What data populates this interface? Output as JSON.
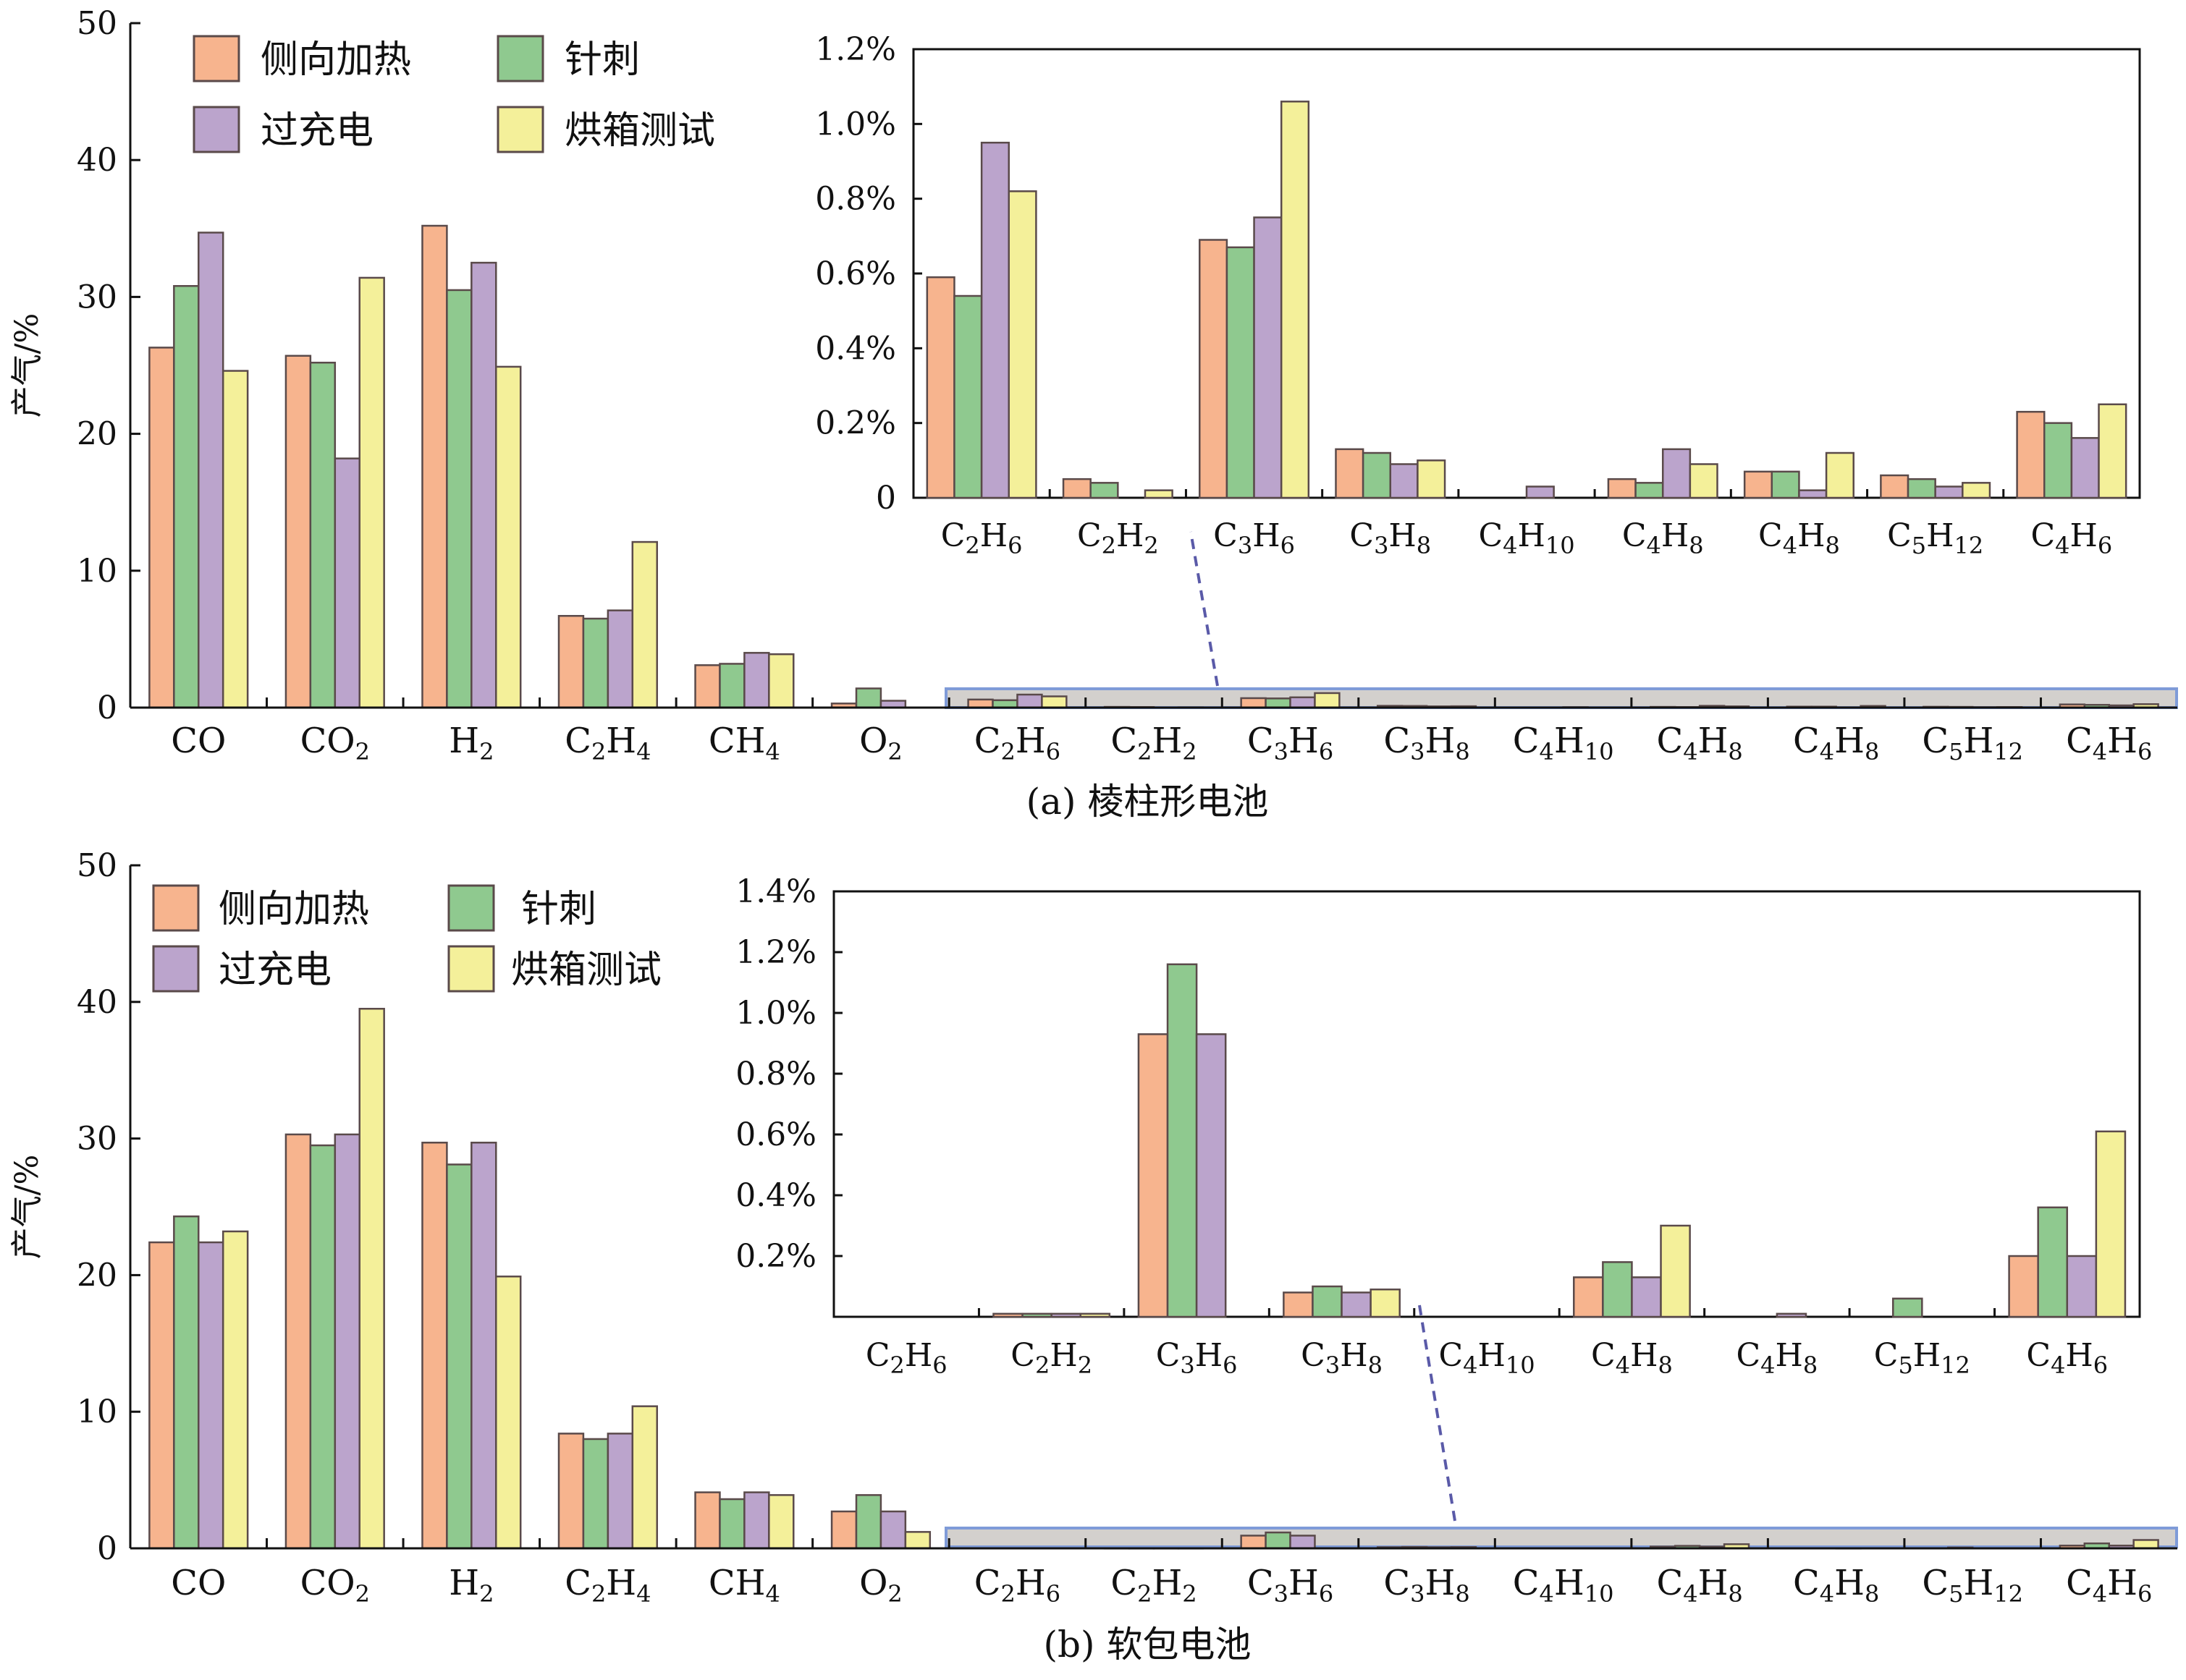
{
  "colors": {
    "侧向加热": "#f7b48e",
    "针刺": "#8fc98f",
    "过充电": "#bba4cc",
    "烘箱测试": "#f4f09a",
    "zoom_band": "#d3d0cd",
    "zoom_border": "#7f9bd8",
    "leader": "#5a5aa8"
  },
  "icons": {
    "legend_swatch": "filled-square",
    "zoom_leader": "dashed-line"
  },
  "chart_data": [
    {
      "type": "bar",
      "caption": "(a) 棱柱形电池",
      "ylabel": "产气/%",
      "ylim": [
        0,
        50
      ],
      "yticks": [
        "0",
        "10",
        "20",
        "30",
        "40",
        "50"
      ],
      "grid": false,
      "legend_placement": "top-left",
      "categories": [
        "CO",
        "CO2",
        "H2",
        "C2H4",
        "CH4",
        "O2",
        "C2H6",
        "C2H2",
        "C3H6",
        "C3H8",
        "C4H10",
        "C4H8",
        "C4H8",
        "C5H12",
        "C4H6"
      ],
      "series": [
        {
          "name": "侧向加热",
          "values": [
            26.3,
            25.7,
            35.2,
            6.7,
            3.1,
            0.3,
            0.59,
            0.05,
            0.69,
            0.13,
            0.0,
            0.05,
            0.07,
            0.06,
            0.23
          ]
        },
        {
          "name": "针刺",
          "values": [
            30.8,
            25.2,
            30.5,
            6.5,
            3.2,
            1.4,
            0.54,
            0.04,
            0.67,
            0.12,
            0.0,
            0.04,
            0.07,
            0.05,
            0.2
          ]
        },
        {
          "name": "过充电",
          "values": [
            34.7,
            18.2,
            32.5,
            7.1,
            4.0,
            0.5,
            0.95,
            0.0,
            0.75,
            0.09,
            0.03,
            0.13,
            0.02,
            0.03,
            0.16
          ]
        },
        {
          "name": "烘箱测试",
          "values": [
            24.6,
            31.4,
            24.9,
            12.1,
            3.9,
            0.0,
            0.82,
            0.02,
            1.06,
            0.1,
            0.0,
            0.09,
            0.12,
            0.04,
            0.25
          ]
        }
      ],
      "inset": {
        "ylim": [
          0,
          1.2
        ],
        "yticks": [
          "0",
          "0.2%",
          "0.4%",
          "0.6%",
          "0.8%",
          "1.0%",
          "1.2%"
        ],
        "categories": [
          "C2H6",
          "C2H2",
          "C3H6",
          "C3H8",
          "C4H10",
          "C4H8",
          "C4H8",
          "C5H12",
          "C4H6"
        ]
      }
    },
    {
      "type": "bar",
      "caption": "(b) 软包电池",
      "ylabel": "产气/%",
      "ylim": [
        0,
        50
      ],
      "yticks": [
        "0",
        "10",
        "20",
        "30",
        "40",
        "50"
      ],
      "grid": false,
      "legend_placement": "top-left",
      "categories": [
        "CO",
        "CO2",
        "H2",
        "C2H4",
        "CH4",
        "O2",
        "C2H6",
        "C2H2",
        "C3H6",
        "C3H8",
        "C4H10",
        "C4H8",
        "C4H8",
        "C5H12",
        "C4H6"
      ],
      "series": [
        {
          "name": "侧向加热",
          "values": [
            22.4,
            30.3,
            29.7,
            8.4,
            4.1,
            2.7,
            0.0,
            0.01,
            0.93,
            0.08,
            0.0,
            0.13,
            0.0,
            0.0,
            0.2
          ]
        },
        {
          "name": "针刺",
          "values": [
            24.3,
            29.5,
            28.1,
            8.0,
            3.6,
            3.9,
            0.0,
            0.01,
            1.16,
            0.1,
            0.0,
            0.18,
            0.0,
            0.06,
            0.36
          ]
        },
        {
          "name": "过充电",
          "values": [
            22.4,
            30.3,
            29.7,
            8.4,
            4.1,
            2.7,
            0.0,
            0.01,
            0.93,
            0.08,
            0.0,
            0.13,
            0.01,
            0.0,
            0.2
          ]
        },
        {
          "name": "烘箱测试",
          "values": [
            23.2,
            39.5,
            19.9,
            10.4,
            3.9,
            1.2,
            0.0,
            0.01,
            0.0,
            0.09,
            0.0,
            0.3,
            0.0,
            0.0,
            0.61
          ]
        }
      ],
      "inset": {
        "ylim": [
          0,
          1.4
        ],
        "yticks": [
          "0.2%",
          "0.4%",
          "0.6%",
          "0.8%",
          "1.0%",
          "1.2%",
          "1.4%"
        ],
        "categories": [
          "C2H6",
          "C2H2",
          "C3H6",
          "C3H8",
          "C4H10",
          "C4H8",
          "C4H8",
          "C5H12",
          "C4H6"
        ]
      }
    }
  ]
}
